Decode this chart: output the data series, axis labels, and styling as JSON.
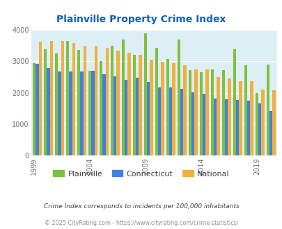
{
  "title": "Plainville Property Crime Index",
  "years": [
    1999,
    2000,
    2001,
    2002,
    2003,
    2004,
    2005,
    2006,
    2007,
    2008,
    2009,
    2010,
    2011,
    2012,
    2013,
    2014,
    2015,
    2016,
    2017,
    2018,
    2019,
    2020
  ],
  "plainville": [
    2950,
    3380,
    3250,
    3640,
    3360,
    2700,
    3000,
    3500,
    3700,
    3200,
    3890,
    3420,
    3070,
    3700,
    2730,
    2650,
    2750,
    2730,
    3380,
    2870,
    2000,
    2900
  ],
  "connecticut": [
    2920,
    2780,
    2680,
    2680,
    2680,
    2700,
    2580,
    2520,
    2400,
    2480,
    2350,
    2160,
    2160,
    2130,
    2010,
    1980,
    1820,
    1800,
    1780,
    1760,
    1670,
    1420
  ],
  "national": [
    3620,
    3650,
    3650,
    3590,
    3500,
    3500,
    3430,
    3330,
    3260,
    3210,
    3040,
    2990,
    2950,
    2870,
    2740,
    2740,
    2510,
    2460,
    2360,
    2360,
    2100,
    2090
  ],
  "plainville_color": "#80c040",
  "connecticut_color": "#4080e0",
  "national_color": "#f0b040",
  "bg_color": "#ddeef5",
  "title_color": "#1060c0",
  "ylabel_max": 4000,
  "xlabel_ticks": [
    1999,
    2004,
    2009,
    2014,
    2019
  ],
  "legend_labels": [
    "Plainville",
    "Connecticut",
    "National"
  ],
  "footnote1": "Crime Index corresponds to incidents per 100,000 inhabitants",
  "footnote2": "© 2025 CityRating.com - https://www.cityrating.com/crime-statistics/",
  "footnote1_color": "#404040",
  "footnote2_color": "#909090"
}
